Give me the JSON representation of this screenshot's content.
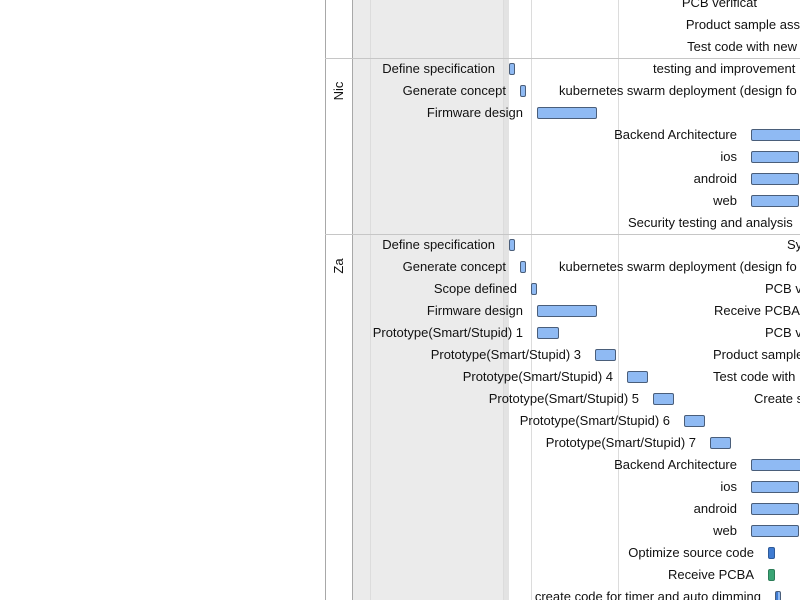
{
  "colors": {
    "bar": "#8fbaf3",
    "bar_dark": "#3f7bd1",
    "bar_green": "#3aa575",
    "shade": "#ebebeb"
  },
  "top_labels": [
    "PCB verificat",
    "Product sample ass",
    "Test code with new"
  ],
  "groups": [
    {
      "name": "Nic",
      "right_labels": [
        "testing and improvement",
        "kubernetes swarm deployment (design fo"
      ],
      "tasks": [
        "Define specification",
        "Generate concept",
        "Firmware design",
        "Backend Architecture",
        "ios",
        "android",
        "web",
        "Security testing and analysis"
      ]
    },
    {
      "name": "Za",
      "right_labels": [
        "Sy",
        "kubernetes swarm deployment (design fo",
        "PCB v",
        "Receive PCBA",
        "PCB v",
        "Product sample",
        "Test code with",
        "Create s"
      ],
      "tasks": [
        "Define specification",
        "Generate concept",
        "Scope defined",
        "Firmware design",
        "Prototype(Smart/Stupid) 1",
        "Prototype(Smart/Stupid) 3",
        "Prototype(Smart/Stupid) 4",
        "Prototype(Smart/Stupid) 5",
        "Prototype(Smart/Stupid) 6",
        "Prototype(Smart/Stupid) 7",
        "Backend Architecture",
        "ios",
        "android",
        "web",
        "Optimize source code",
        "Receive PCBA",
        "create code for timer and auto dimming"
      ]
    }
  ]
}
